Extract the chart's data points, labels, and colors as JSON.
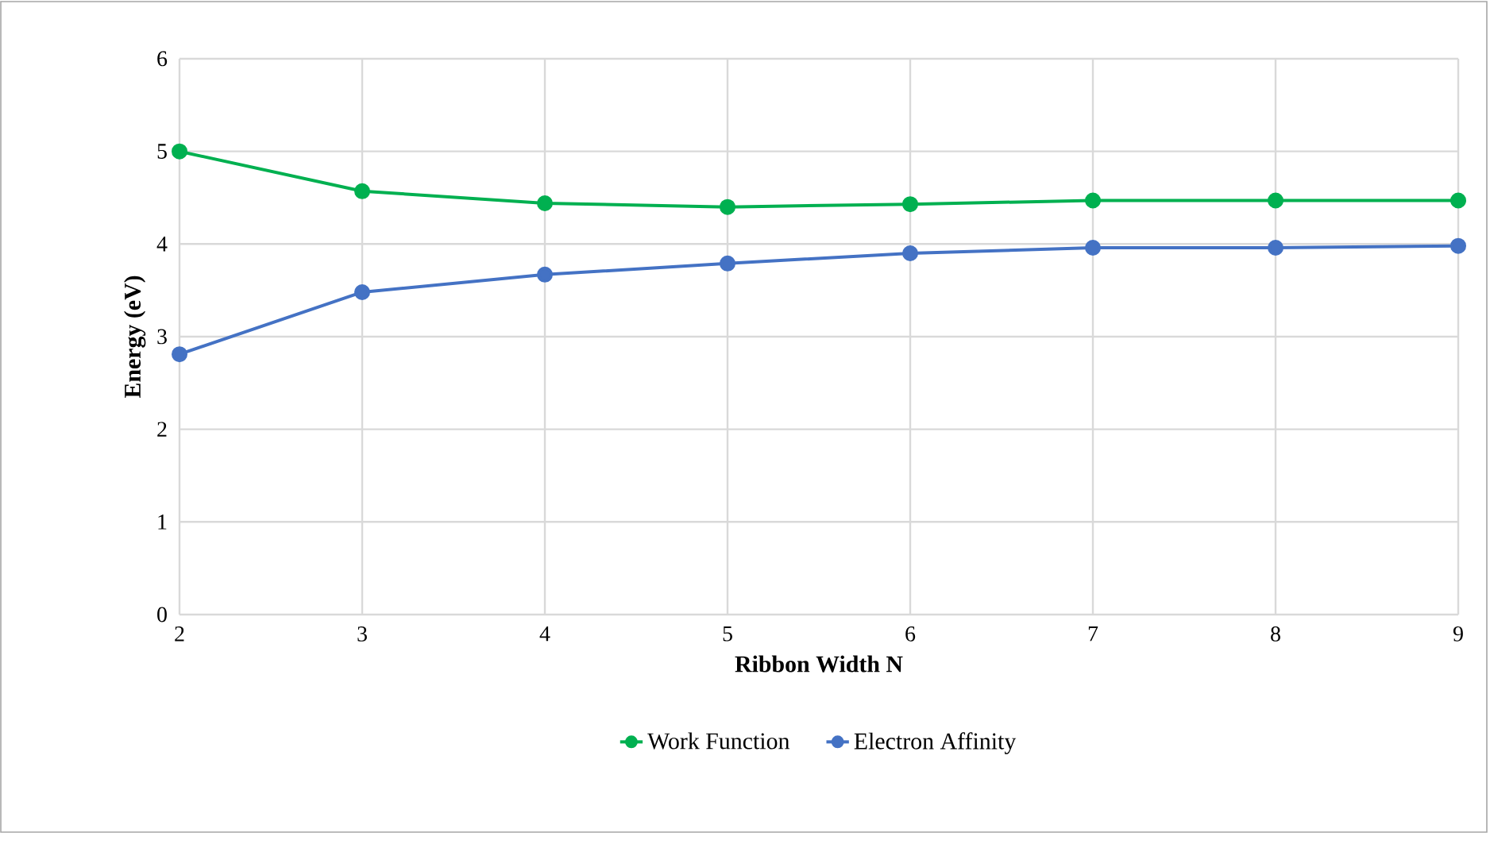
{
  "chart_data": {
    "type": "line",
    "xlabel": "Ribbon Width N",
    "ylabel": "Energy (eV)",
    "x": [
      2,
      3,
      4,
      5,
      6,
      7,
      8,
      9
    ],
    "series": [
      {
        "name": "Work Function",
        "color": "#00b050",
        "values": [
          5.0,
          4.57,
          4.44,
          4.4,
          4.43,
          4.47,
          4.47,
          4.47
        ]
      },
      {
        "name": "Electron Affinity",
        "color": "#4472c4",
        "values": [
          2.81,
          3.48,
          3.67,
          3.79,
          3.9,
          3.96,
          3.96,
          3.98
        ]
      }
    ],
    "xlim": [
      2,
      9
    ],
    "xticks": [
      2,
      3,
      4,
      5,
      6,
      7,
      8,
      9
    ],
    "ylim": [
      0,
      6
    ],
    "yticks": [
      0,
      1,
      2,
      3,
      4,
      5,
      6
    ],
    "grid": true,
    "legend": "bottom",
    "marker": "circle",
    "line_style": "solid"
  }
}
